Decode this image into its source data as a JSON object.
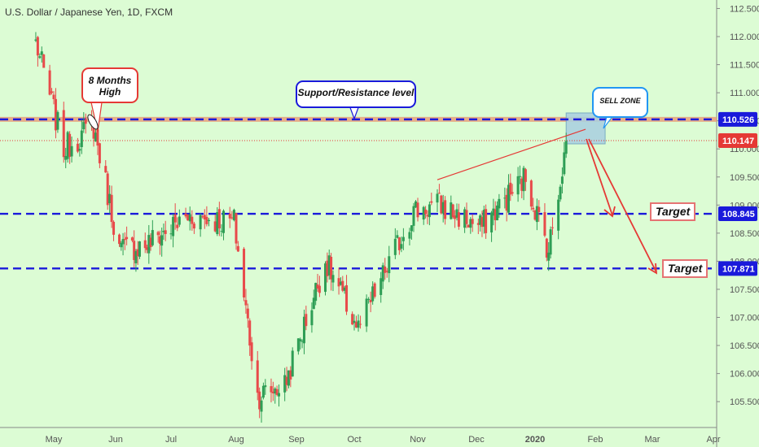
{
  "chart_data": {
    "type": "candlestick",
    "title": "U.S. Dollar / Japanese Yen, 1D, FXCM",
    "y_axis": {
      "ylim": [
        105.3,
        112.55
      ],
      "ticks": [
        "112.500",
        "112.000",
        "111.500",
        "111.000",
        "110.500",
        "110.000",
        "109.500",
        "109.000",
        "108.500",
        "108.000",
        "107.500",
        "107.000",
        "106.500",
        "106.000",
        "105.500"
      ]
    },
    "x_axis": {
      "ticks": [
        "May",
        "Jun",
        "Jul",
        "Aug",
        "Sep",
        "Oct",
        "Nov",
        "Dec",
        "2020",
        "Feb",
        "Mar",
        "Apr"
      ]
    },
    "levels": [
      {
        "value": 110.526,
        "label": "110.526",
        "style": "dashed",
        "color": "#1a1adb"
      },
      {
        "value": 110.147,
        "label": "110.147",
        "style": "dotted",
        "color": "#e53935"
      },
      {
        "value": 108.845,
        "label": "108.845",
        "style": "dashed",
        "color": "#1a1adb"
      },
      {
        "value": 107.871,
        "label": "107.871",
        "style": "dashed",
        "color": "#1a1adb"
      }
    ],
    "annotations": [
      {
        "text": "8 Months\nHigh"
      },
      {
        "text": "Support/Resistance level"
      },
      {
        "text": "SELL ZONE"
      },
      {
        "text": "Target"
      },
      {
        "text": "Target"
      }
    ],
    "approximate_closes": [
      {
        "date": "2019-04-22",
        "close": 111.9
      },
      {
        "date": "2019-05-06",
        "close": 110.0
      },
      {
        "date": "2019-05-21",
        "close": 110.4
      },
      {
        "date": "2019-06-03",
        "close": 108.2
      },
      {
        "date": "2019-06-18",
        "close": 108.3
      },
      {
        "date": "2019-07-10",
        "close": 108.8
      },
      {
        "date": "2019-07-31",
        "close": 108.7
      },
      {
        "date": "2019-08-12",
        "close": 105.6
      },
      {
        "date": "2019-08-26",
        "close": 105.8
      },
      {
        "date": "2019-09-16",
        "close": 108.0
      },
      {
        "date": "2019-10-03",
        "close": 106.8
      },
      {
        "date": "2019-10-30",
        "close": 108.9
      },
      {
        "date": "2019-11-12",
        "close": 109.0
      },
      {
        "date": "2019-12-03",
        "close": 108.6
      },
      {
        "date": "2019-12-27",
        "close": 109.5
      },
      {
        "date": "2020-01-08",
        "close": 108.2
      },
      {
        "date": "2020-01-17",
        "close": 110.1
      }
    ]
  },
  "colors": {
    "background": "#dcfcd4",
    "bull_candle": "#2e9e55",
    "bear_candle": "#e84a4a",
    "level_line": "#1a1adb",
    "resistance_band": "#e8a07a",
    "sell_zone": "#a9cfe0"
  }
}
